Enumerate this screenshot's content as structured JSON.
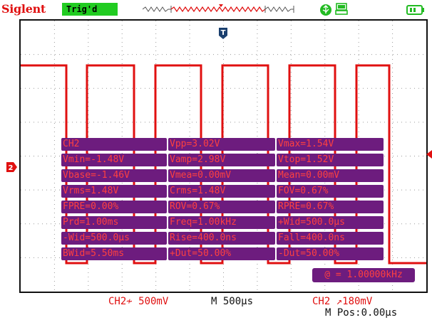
{
  "header": {
    "brand": "Siglent",
    "trigger_status": "Trig'd"
  },
  "markers": {
    "trigger_position": "T",
    "channel_ground": "2"
  },
  "colors": {
    "channel2": "#e01010",
    "panel_bg": "#6d1c7e",
    "panel_text": "#ff4040",
    "trig_status_bg": "#22cc22"
  },
  "icons": {
    "usb": "usb-icon",
    "printer": "printer-icon",
    "battery": "battery-icon"
  },
  "measurements": [
    [
      "CH2",
      "Vpp=3.02V",
      "Vmax=1.54V"
    ],
    [
      "Vmin=-1.48V",
      "Vamp=2.98V",
      "Vtop=1.52V"
    ],
    [
      "Vbase=-1.46V",
      "Vmea=0.00mV",
      "Mean=0.00mV"
    ],
    [
      "Vrms=1.48V",
      "Crms=1.48V",
      "FOV=0.67%"
    ],
    [
      "FPRE=0.00%",
      "ROV=0.67%",
      "RPRE=0.67%"
    ],
    [
      "Prd=1.00ms",
      "Freq=1.00kHz",
      "+Wid=500.0μs"
    ],
    [
      "-Wid=500.0μs",
      "Rise=400.0ns",
      "Fall=400.0ns"
    ],
    [
      "BWid=5.50ms",
      "+Dut=50.00%",
      "-Dut=50.00%"
    ]
  ],
  "frequency_counter": "@ = 1.00000kHz",
  "status": {
    "ch2_scale": "CH2≁ 500mV",
    "timebase": "M 500μs",
    "trigger": "CH2 ↗180mV",
    "m_pos": "M Pos:0.00μs"
  }
}
